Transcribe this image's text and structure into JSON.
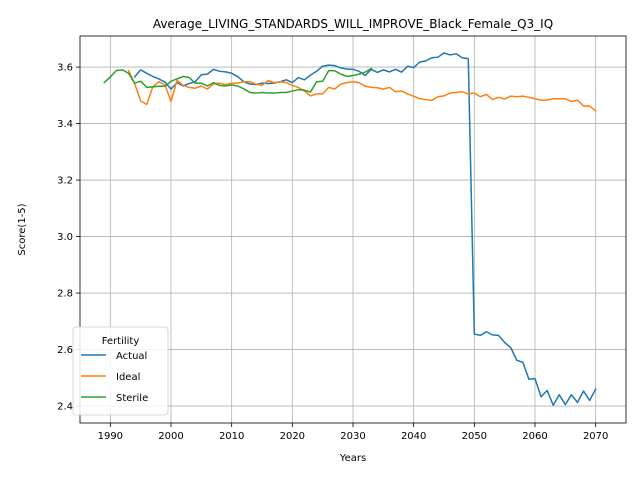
{
  "chart_data": {
    "type": "line",
    "title": "Average_LIVING_STANDARDS_WILL_IMPROVE_Black_Female_Q3_IQ",
    "xlabel": "Years",
    "ylabel": "Score(1-5)",
    "xlim": [
      1985,
      2075
    ],
    "ylim": [
      2.34,
      3.71
    ],
    "xticks": [
      1990,
      2000,
      2010,
      2020,
      2030,
      2040,
      2050,
      2060,
      2070
    ],
    "yticks": [
      2.4,
      2.6,
      2.8,
      3.0,
      3.2,
      3.4,
      3.6
    ],
    "grid": true,
    "legend": {
      "title": "Fertility",
      "position": "lower-left"
    },
    "series": [
      {
        "name": "Actual",
        "color": "#1f77b4",
        "x": [
          1994,
          1995,
          1996,
          1997,
          1998,
          1999,
          2000,
          2001,
          2002,
          2003,
          2004,
          2005,
          2006,
          2007,
          2008,
          2009,
          2010,
          2011,
          2012,
          2013,
          2014,
          2015,
          2016,
          2017,
          2018,
          2019,
          2020,
          2021,
          2022,
          2023,
          2024,
          2025,
          2026,
          2027,
          2028,
          2029,
          2030,
          2031,
          2032,
          2033,
          2034,
          2035,
          2036,
          2037,
          2038,
          2039,
          2040,
          2041,
          2042,
          2043,
          2044,
          2045,
          2046,
          2047,
          2048,
          2049,
          2050,
          2051,
          2052,
          2053,
          2054,
          2055,
          2056,
          2057,
          2058,
          2059,
          2060,
          2061,
          2062,
          2063,
          2064,
          2065,
          2066,
          2067,
          2068,
          2069,
          2070
        ],
        "y": [
          3.565,
          3.59,
          3.578,
          3.567,
          3.558,
          3.547,
          3.522,
          3.545,
          3.533,
          3.542,
          3.548,
          3.573,
          3.575,
          3.592,
          3.585,
          3.583,
          3.578,
          3.566,
          3.548,
          3.54,
          3.538,
          3.543,
          3.542,
          3.543,
          3.548,
          3.555,
          3.545,
          3.563,
          3.555,
          3.572,
          3.585,
          3.603,
          3.607,
          3.605,
          3.597,
          3.593,
          3.592,
          3.585,
          3.57,
          3.592,
          3.581,
          3.59,
          3.583,
          3.592,
          3.582,
          3.603,
          3.598,
          3.618,
          3.622,
          3.633,
          3.635,
          3.65,
          3.643,
          3.647,
          3.633,
          3.63,
          2.655,
          2.65,
          2.663,
          2.652,
          2.65,
          2.625,
          2.607,
          2.562,
          2.555,
          2.495,
          2.497,
          2.433,
          2.455,
          2.403,
          2.44,
          2.405,
          2.44,
          2.413,
          2.453,
          2.42,
          2.46
        ]
      },
      {
        "name": "Ideal",
        "color": "#ff7f0e",
        "x": [
          1993,
          1994,
          1995,
          1996,
          1997,
          1998,
          1999,
          2000,
          2001,
          2002,
          2003,
          2004,
          2005,
          2006,
          2007,
          2008,
          2009,
          2010,
          2011,
          2012,
          2013,
          2014,
          2015,
          2016,
          2017,
          2018,
          2019,
          2020,
          2021,
          2022,
          2023,
          2024,
          2025,
          2026,
          2027,
          2028,
          2029,
          2030,
          2031,
          2032,
          2033,
          2034,
          2035,
          2036,
          2037,
          2038,
          2039,
          2040,
          2041,
          2042,
          2043,
          2044,
          2045,
          2046,
          2047,
          2048,
          2049,
          2050,
          2051,
          2052,
          2053,
          2054,
          2055,
          2056,
          2057,
          2058,
          2059,
          2060,
          2061,
          2062,
          2063,
          2064,
          2065,
          2066,
          2067,
          2068,
          2069,
          2070
        ],
        "y": [
          3.588,
          3.542,
          3.48,
          3.468,
          3.53,
          3.548,
          3.537,
          3.478,
          3.553,
          3.535,
          3.528,
          3.525,
          3.533,
          3.522,
          3.54,
          3.543,
          3.538,
          3.543,
          3.543,
          3.548,
          3.548,
          3.54,
          3.535,
          3.552,
          3.545,
          3.548,
          3.545,
          3.535,
          3.528,
          3.515,
          3.498,
          3.505,
          3.505,
          3.528,
          3.522,
          3.54,
          3.545,
          3.548,
          3.545,
          3.532,
          3.528,
          3.527,
          3.522,
          3.528,
          3.513,
          3.515,
          3.505,
          3.497,
          3.488,
          3.485,
          3.482,
          3.495,
          3.498,
          3.508,
          3.51,
          3.513,
          3.505,
          3.508,
          3.495,
          3.503,
          3.485,
          3.493,
          3.487,
          3.497,
          3.495,
          3.497,
          3.493,
          3.488,
          3.483,
          3.483,
          3.488,
          3.488,
          3.488,
          3.478,
          3.483,
          3.462,
          3.462,
          3.445
        ]
      },
      {
        "name": "Sterile",
        "color": "#2ca02c",
        "x": [
          1989,
          1990,
          1991,
          1992,
          1993,
          1994,
          1995,
          1996,
          1997,
          1998,
          1999,
          2000,
          2001,
          2002,
          2003,
          2004,
          2005,
          2006,
          2007,
          2008,
          2009,
          2010,
          2011,
          2012,
          2013,
          2014,
          2015,
          2016,
          2017,
          2018,
          2019,
          2020,
          2021,
          2022,
          2023,
          2024,
          2025,
          2026,
          2027,
          2028,
          2029,
          2030,
          2031,
          2032,
          2033
        ],
        "y": [
          3.545,
          3.565,
          3.588,
          3.59,
          3.578,
          3.543,
          3.55,
          3.528,
          3.53,
          3.532,
          3.532,
          3.55,
          3.558,
          3.567,
          3.563,
          3.543,
          3.543,
          3.533,
          3.545,
          3.535,
          3.533,
          3.537,
          3.533,
          3.523,
          3.51,
          3.508,
          3.51,
          3.508,
          3.508,
          3.51,
          3.51,
          3.515,
          3.52,
          3.518,
          3.512,
          3.548,
          3.55,
          3.588,
          3.587,
          3.575,
          3.567,
          3.57,
          3.575,
          3.582,
          3.595
        ]
      }
    ]
  }
}
